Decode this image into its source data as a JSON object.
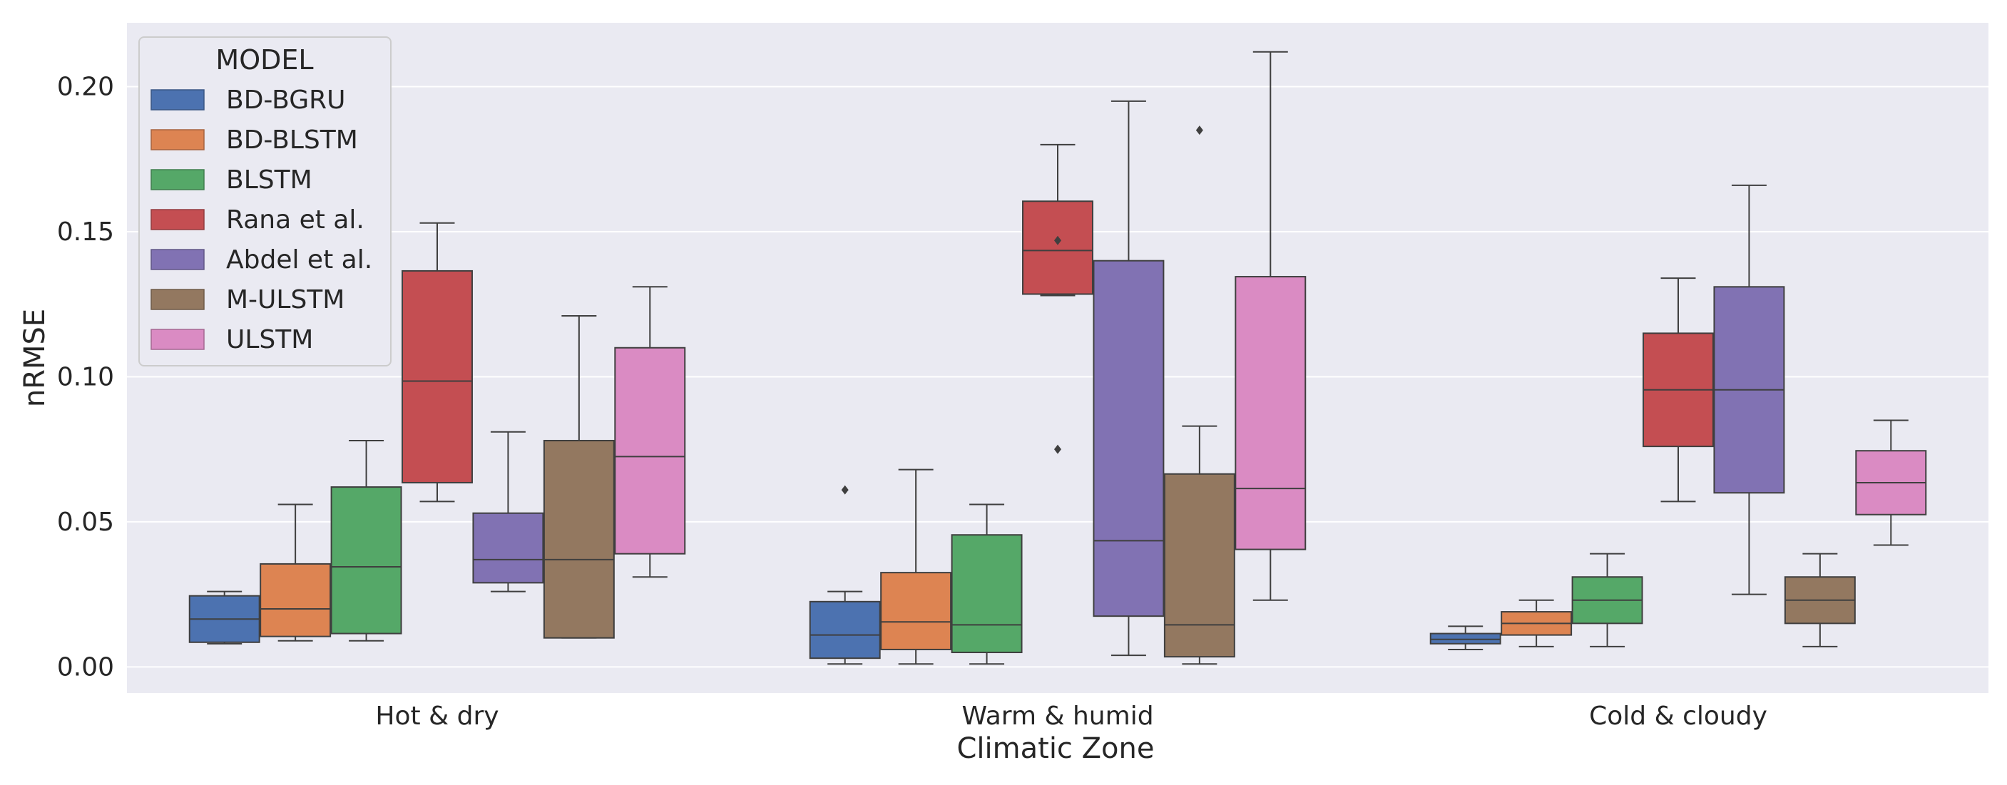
{
  "chart_data": {
    "type": "boxplot",
    "xlabel": "Climatic Zone",
    "ylabel": "nRMSE",
    "ylim": [
      -0.009,
      0.222
    ],
    "yticks": [
      0.0,
      0.05,
      0.1,
      0.15,
      0.2
    ],
    "ytick_labels": [
      "0.00",
      "0.05",
      "0.10",
      "0.15",
      "0.20"
    ],
    "grid": true,
    "legend_position": "top-left",
    "legend_title": "MODEL",
    "categories": [
      "Hot & dry",
      "Warm & humid",
      "Cold & cloudy"
    ],
    "series": [
      {
        "name": "BD-BGRU",
        "color": "#4c72b0",
        "boxes": [
          {
            "whislo": 0.008,
            "q1": 0.0085,
            "med": 0.0165,
            "q3": 0.0245,
            "whishi": 0.026,
            "fliers": []
          },
          {
            "whislo": 0.001,
            "q1": 0.003,
            "med": 0.011,
            "q3": 0.0225,
            "whishi": 0.026,
            "fliers": [
              0.061
            ]
          },
          {
            "whislo": 0.006,
            "q1": 0.008,
            "med": 0.0095,
            "q3": 0.0115,
            "whishi": 0.014,
            "fliers": []
          }
        ]
      },
      {
        "name": "BD-BLSTM",
        "color": "#dd8452",
        "boxes": [
          {
            "whislo": 0.009,
            "q1": 0.0105,
            "med": 0.02,
            "q3": 0.0355,
            "whishi": 0.056,
            "fliers": []
          },
          {
            "whislo": 0.001,
            "q1": 0.006,
            "med": 0.0155,
            "q3": 0.0325,
            "whishi": 0.068,
            "fliers": []
          },
          {
            "whislo": 0.007,
            "q1": 0.011,
            "med": 0.015,
            "q3": 0.019,
            "whishi": 0.023,
            "fliers": []
          }
        ]
      },
      {
        "name": "BLSTM",
        "color": "#55a868",
        "boxes": [
          {
            "whislo": 0.009,
            "q1": 0.0115,
            "med": 0.0345,
            "q3": 0.062,
            "whishi": 0.078,
            "fliers": []
          },
          {
            "whislo": 0.001,
            "q1": 0.005,
            "med": 0.0145,
            "q3": 0.0455,
            "whishi": 0.056,
            "fliers": []
          },
          {
            "whislo": 0.007,
            "q1": 0.015,
            "med": 0.023,
            "q3": 0.031,
            "whishi": 0.039,
            "fliers": []
          }
        ]
      },
      {
        "name": "Rana et al.",
        "color": "#c44e52",
        "boxes": [
          {
            "whislo": 0.057,
            "q1": 0.0635,
            "med": 0.0985,
            "q3": 0.1365,
            "whishi": 0.153,
            "fliers": []
          },
          {
            "whislo": 0.128,
            "q1": 0.1285,
            "med": 0.1435,
            "q3": 0.1605,
            "whishi": 0.18,
            "fliers": [
              0.075,
              0.147
            ]
          },
          {
            "whislo": 0.057,
            "q1": 0.076,
            "med": 0.0955,
            "q3": 0.115,
            "whishi": 0.134,
            "fliers": []
          }
        ]
      },
      {
        "name": "Abdel et al.",
        "color": "#8172b3",
        "boxes": [
          {
            "whislo": 0.026,
            "q1": 0.029,
            "med": 0.037,
            "q3": 0.053,
            "whishi": 0.081,
            "fliers": []
          },
          {
            "whislo": 0.004,
            "q1": 0.0175,
            "med": 0.0435,
            "q3": 0.14,
            "whishi": 0.195,
            "fliers": []
          },
          {
            "whislo": 0.025,
            "q1": 0.06,
            "med": 0.0955,
            "q3": 0.131,
            "whishi": 0.166,
            "fliers": []
          }
        ]
      },
      {
        "name": "M-ULSTM",
        "color": "#937860",
        "boxes": [
          {
            "whislo": 0.01,
            "q1": 0.01,
            "med": 0.037,
            "q3": 0.078,
            "whishi": 0.121,
            "fliers": []
          },
          {
            "whislo": 0.001,
            "q1": 0.0035,
            "med": 0.0145,
            "q3": 0.0665,
            "whishi": 0.083,
            "fliers": [
              0.185
            ]
          },
          {
            "whislo": 0.007,
            "q1": 0.015,
            "med": 0.023,
            "q3": 0.031,
            "whishi": 0.039,
            "fliers": []
          }
        ]
      },
      {
        "name": "ULSTM",
        "color": "#da8bc3",
        "boxes": [
          {
            "whislo": 0.031,
            "q1": 0.039,
            "med": 0.0725,
            "q3": 0.11,
            "whishi": 0.131,
            "fliers": []
          },
          {
            "whislo": 0.023,
            "q1": 0.0405,
            "med": 0.0615,
            "q3": 0.1345,
            "whishi": 0.212,
            "fliers": []
          },
          {
            "whislo": 0.042,
            "q1": 0.0525,
            "med": 0.0635,
            "q3": 0.0745,
            "whishi": 0.085,
            "fliers": []
          }
        ]
      }
    ]
  }
}
